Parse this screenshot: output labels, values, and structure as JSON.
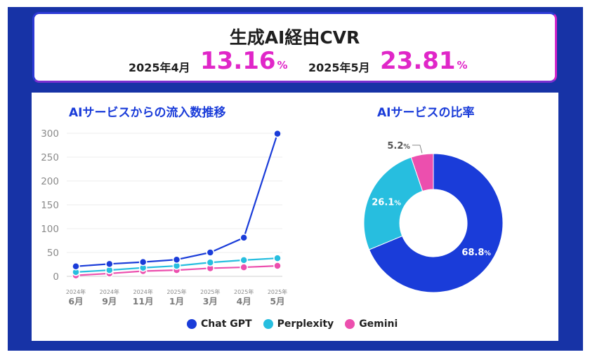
{
  "header": {
    "title": "生成AI経由CVR",
    "april_label": "2025年4月",
    "april_value": "13.16",
    "may_label": "2025年5月",
    "may_value": "23.81",
    "percent": "%"
  },
  "colors": {
    "chatgpt": "#1a3cd9",
    "perplexity": "#27bedf",
    "gemini": "#ec4fae",
    "accent": "#e026c8",
    "frame": "#1733a6"
  },
  "chart_data": [
    {
      "type": "line",
      "title": "AIサービスからの流入数推移",
      "categories": [
        {
          "year": "2024年",
          "month": "6月"
        },
        {
          "year": "2024年",
          "month": "9月"
        },
        {
          "year": "2024年",
          "month": "11月"
        },
        {
          "year": "2025年",
          "month": "1月"
        },
        {
          "year": "2025年",
          "month": "3月"
        },
        {
          "year": "2025年",
          "month": "4月"
        },
        {
          "year": "2025年",
          "month": "5月"
        }
      ],
      "yticks": [
        "0",
        "50",
        "100",
        "150",
        "200",
        "250",
        "300"
      ],
      "ylim": [
        0,
        300
      ],
      "series": [
        {
          "name": "Chat GPT",
          "color": "#1a3cd9",
          "values": [
            21,
            26,
            30,
            35,
            50,
            81,
            299
          ]
        },
        {
          "name": "Perplexity",
          "color": "#27bedf",
          "values": [
            9,
            13,
            18,
            22,
            29,
            34,
            38
          ]
        },
        {
          "name": "Gemini",
          "color": "#ec4fae",
          "values": [
            2,
            6,
            11,
            13,
            17,
            19,
            22
          ]
        }
      ]
    },
    {
      "type": "pie",
      "title": "AIサービスの比率",
      "slices": [
        {
          "name": "Chat GPT",
          "value": 68.8,
          "value_label": "68.8",
          "color": "#1a3cd9"
        },
        {
          "name": "Perplexity",
          "value": 26.1,
          "value_label": "26.1",
          "color": "#27bedf"
        },
        {
          "name": "Gemini",
          "value": 5.2,
          "value_label": "5.2",
          "color": "#ec4fae"
        }
      ],
      "percent": "%"
    }
  ],
  "legend": [
    {
      "name": "Chat GPT",
      "color": "#1a3cd9"
    },
    {
      "name": "Perplexity",
      "color": "#27bedf"
    },
    {
      "name": "Gemini",
      "color": "#ec4fae"
    }
  ]
}
